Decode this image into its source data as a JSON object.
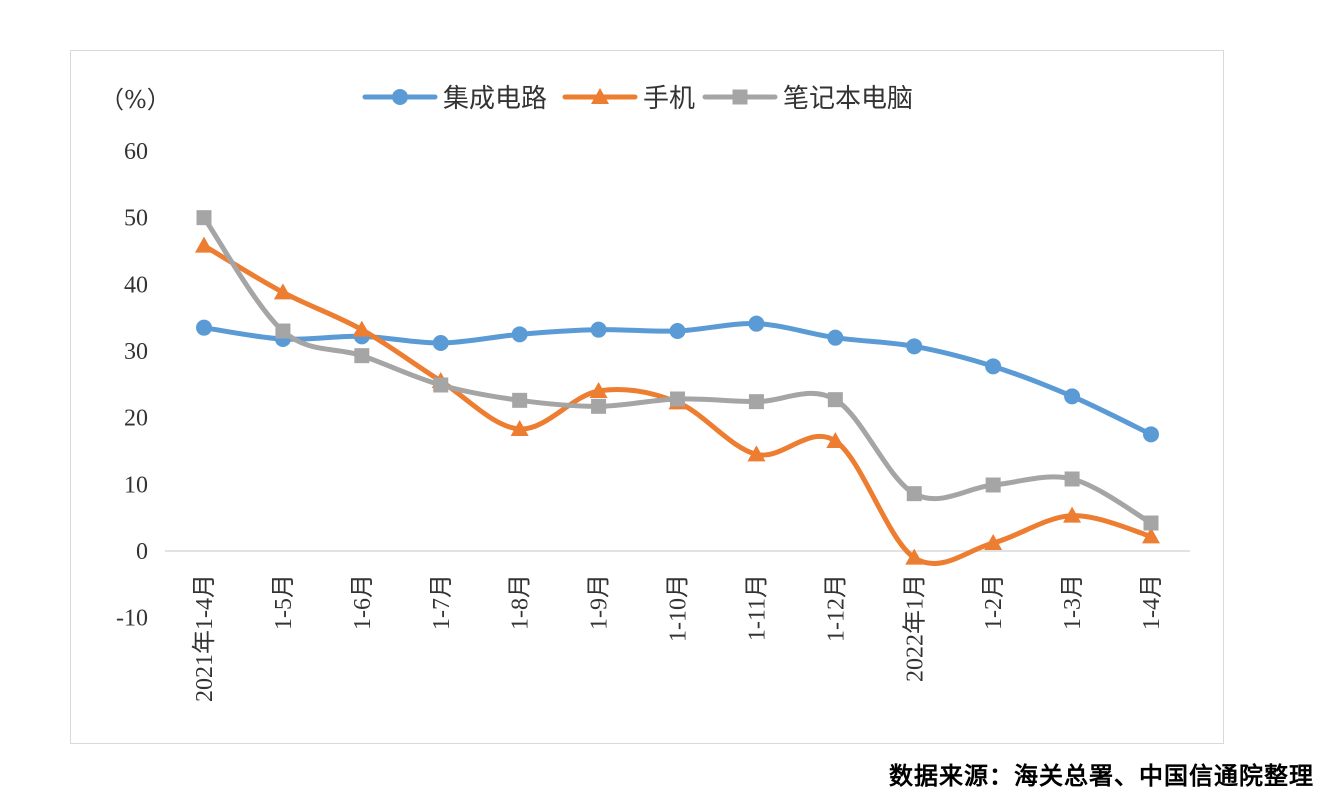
{
  "chart_data": {
    "type": "line",
    "unit_label": "（%）",
    "categories": [
      "2021年1-4月",
      "1-5月",
      "1-6月",
      "1-7月",
      "1-8月",
      "1-9月",
      "1-10月",
      "1-11月",
      "1-12月",
      "2022年1月",
      "1-2月",
      "1-3月",
      "1-4月"
    ],
    "ylim": [
      -10,
      60
    ],
    "yticks": [
      -10,
      0,
      10,
      20,
      30,
      40,
      50,
      60
    ],
    "legend_position": "top-center",
    "grid": false,
    "series": [
      {
        "name": "集成电路",
        "color": "#5b9bd5",
        "marker": "circle",
        "values": [
          33.5,
          31.8,
          32.2,
          31.2,
          32.5,
          33.2,
          33.0,
          34.1,
          32.0,
          30.7,
          27.7,
          23.2,
          17.5
        ]
      },
      {
        "name": "手机",
        "color": "#ed7d31",
        "marker": "triangle",
        "values": [
          45.8,
          38.8,
          33.2,
          25.5,
          18.3,
          24.0,
          22.3,
          14.5,
          16.5,
          -1.0,
          1.2,
          5.3,
          2.2
        ]
      },
      {
        "name": "笔记本电脑",
        "color": "#a5a5a5",
        "marker": "square",
        "values": [
          50.0,
          33.0,
          29.3,
          24.9,
          22.6,
          21.7,
          22.8,
          22.4,
          22.7,
          8.6,
          9.9,
          10.8,
          4.2
        ]
      }
    ]
  },
  "source_note": "数据来源：海关总署、中国信通院整理"
}
